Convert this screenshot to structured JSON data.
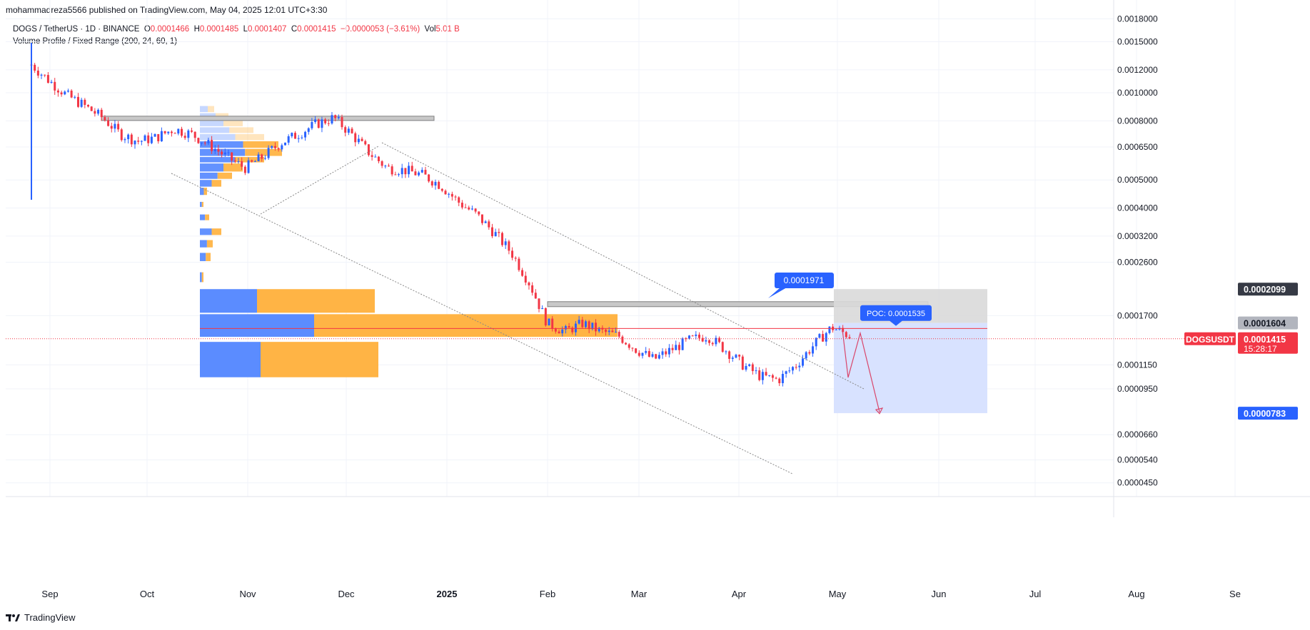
{
  "publisher_line": "mohammadreza5566 published on TradingView.com, May 04, 2025 12:01 UTC+3:30",
  "legend": {
    "symbol": "DOGS / TetherUS · 1D · BINANCE",
    "o_label": "O",
    "o_value": "0.0001466",
    "h_label": "H",
    "h_value": "0.0001485",
    "l_label": "L",
    "l_value": "0.0001407",
    "c_label": "C",
    "c_value": "0.0001415",
    "change": "−0.0000053 (−3.61%)",
    "vol_label": "Vol",
    "vol_value": "5.01 B",
    "indicator": "Volume Profile / Fixed Range (200, 24, 60, 1)"
  },
  "footer_brand": "TradingView",
  "colors": {
    "up": "#2962ff",
    "down": "#f23645",
    "grid": "#f0f3fa",
    "vp_up": "#5b8cff",
    "vp_down": "#ffb445",
    "zone": "#c8c8c8",
    "target_box": "#d6e0ff",
    "stop_box": "#d9d9d9",
    "price_line": "#f23645"
  },
  "chart_data": {
    "type": "candlestick",
    "symbol": "DOGSUSDT",
    "timeframe": "1D",
    "exchange": "BINANCE",
    "y_scale": "log",
    "ylim": [
      0.00042,
      0.00019
    ],
    "y_ticks": [
      "0.0018000",
      "0.0015000",
      "0.0012000",
      "0.0010000",
      "0.0008000",
      "0.0006500",
      "0.0005000",
      "0.0004000",
      "0.0003200",
      "0.0002600",
      "0.0001700",
      "0.0001150",
      "0.0000950",
      "0.0000660",
      "0.0000540",
      "0.0000450"
    ],
    "y_tick_values": [
      0.0018,
      0.0015,
      0.0012,
      0.001,
      0.0008,
      0.00065,
      0.0005,
      0.0004,
      0.00032,
      0.00026,
      0.00017,
      0.000115,
      9.5e-05,
      6.6e-05,
      5.4e-05,
      4.5e-05
    ],
    "x_ticks": [
      "Sep",
      "Oct",
      "Nov",
      "Dec",
      "2025",
      "Feb",
      "Mar",
      "Apr",
      "May",
      "Jun",
      "Jul",
      "Aug",
      "Se"
    ],
    "price_labels": [
      {
        "text": "0.0002099",
        "value": 0.0002099,
        "style": "dark"
      },
      {
        "text": "0.0001604",
        "value": 0.0001604,
        "style": "grey"
      },
      {
        "text": "0.0001415",
        "value": 0.0001415,
        "style": "red",
        "symbol_tag": "DOGSUSDT",
        "countdown": "15:28:17"
      },
      {
        "text": "0.0000783",
        "value": 7.83e-05,
        "style": "blue"
      }
    ],
    "annotations": [
      {
        "type": "callout",
        "text": "0.0001971",
        "value": 0.0001971
      },
      {
        "type": "callout",
        "text": "POC: 0.0001535",
        "value": 0.0001535
      }
    ],
    "series": [
      {
        "name": "DOGS / TetherUS",
        "closes_path_description_values": [
          0.00125,
          0.0011,
          0.00098,
          0.0009,
          0.00082,
          0.00072,
          0.00068,
          0.0007,
          0.00075,
          0.00072,
          0.00066,
          0.0006,
          0.00055,
          0.0006,
          0.00067,
          0.00072,
          0.00078,
          0.00082,
          0.00072,
          0.00062,
          0.00055,
          0.00054,
          0.00052,
          0.00048,
          0.00042,
          0.00038,
          0.00033,
          0.00028,
          0.00022,
          0.00016,
          0.00015,
          0.00016,
          0.00015,
          0.000145,
          0.00013,
          0.00012,
          0.00013,
          0.00014,
          0.000145,
          0.00013,
          0.000115,
          0.000105,
          0.000102,
          0.000115,
          0.000135,
          0.000155,
          0.000145
        ]
      }
    ],
    "volume_profile": {
      "poc": 0.0001535
    }
  }
}
